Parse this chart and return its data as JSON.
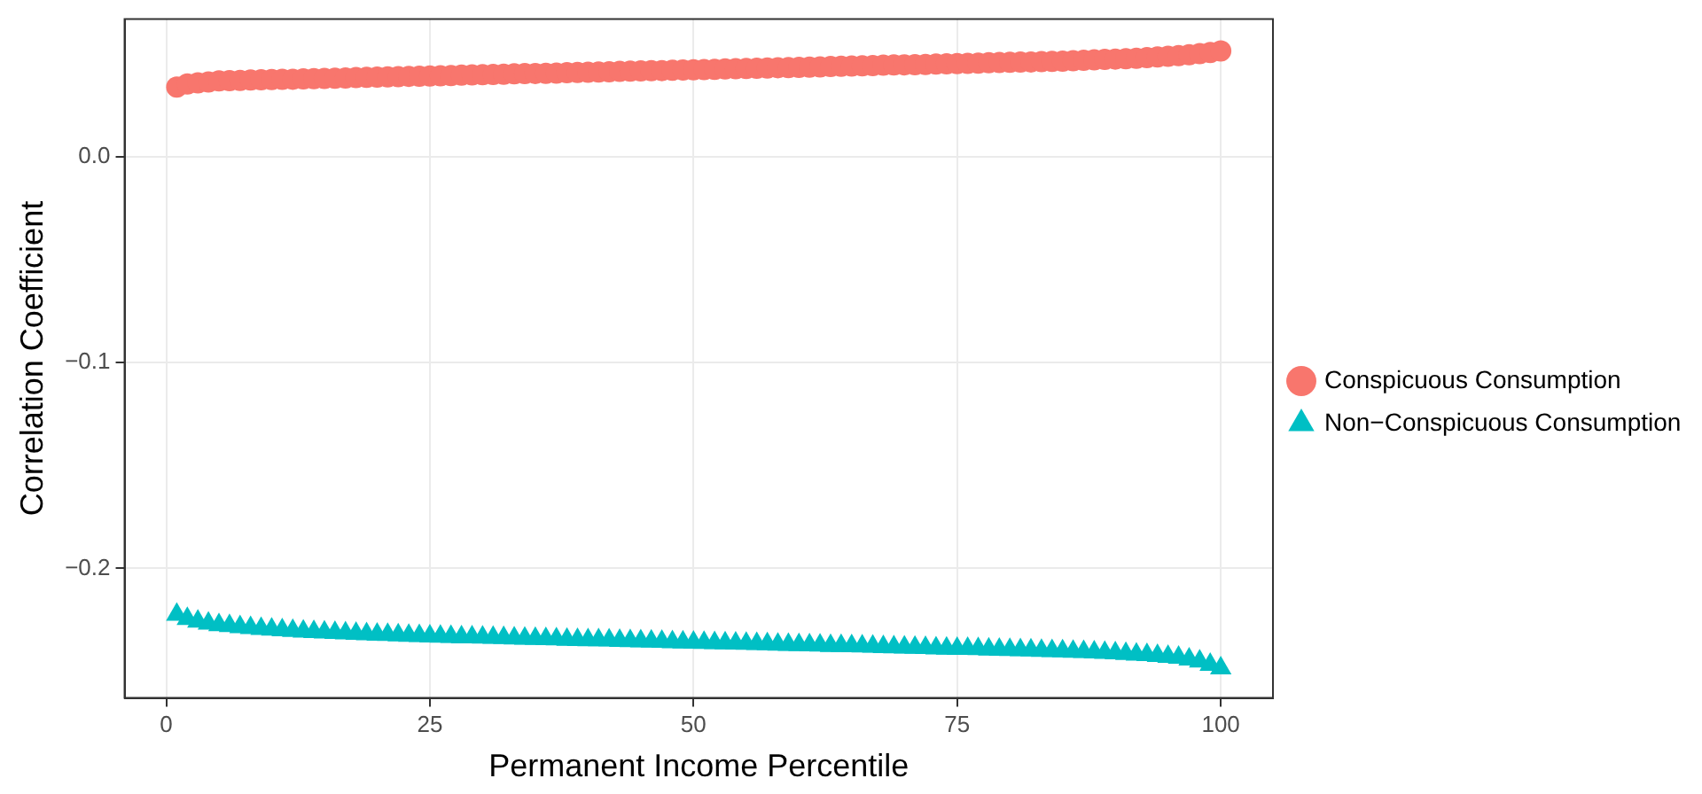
{
  "chart_data": {
    "type": "scatter",
    "xlabel": "Permanent Income Percentile",
    "ylabel": "Correlation Coefficient",
    "x": [
      1,
      2,
      3,
      4,
      5,
      6,
      7,
      8,
      9,
      10,
      11,
      12,
      13,
      14,
      15,
      16,
      17,
      18,
      19,
      20,
      21,
      22,
      23,
      24,
      25,
      26,
      27,
      28,
      29,
      30,
      31,
      32,
      33,
      34,
      35,
      36,
      37,
      38,
      39,
      40,
      41,
      42,
      43,
      44,
      45,
      46,
      47,
      48,
      49,
      50,
      51,
      52,
      53,
      54,
      55,
      56,
      57,
      58,
      59,
      60,
      61,
      62,
      63,
      64,
      65,
      66,
      67,
      68,
      69,
      70,
      71,
      72,
      73,
      74,
      75,
      76,
      77,
      78,
      79,
      80,
      81,
      82,
      83,
      84,
      85,
      86,
      87,
      88,
      89,
      90,
      91,
      92,
      93,
      94,
      95,
      96,
      97,
      98,
      99,
      100
    ],
    "series": [
      {
        "name": "Conspicuous Consumption",
        "color": "#f8766d",
        "marker": "circle",
        "values": [
          0.034,
          0.0355,
          0.036,
          0.0365,
          0.037,
          0.0371,
          0.0372,
          0.0374,
          0.0375,
          0.0376,
          0.0377,
          0.0378,
          0.038,
          0.0381,
          0.0382,
          0.0383,
          0.0384,
          0.0386,
          0.0387,
          0.0388,
          0.0389,
          0.039,
          0.0392,
          0.0393,
          0.0394,
          0.0395,
          0.0396,
          0.0398,
          0.0399,
          0.04,
          0.0401,
          0.0402,
          0.0404,
          0.0405,
          0.0406,
          0.0407,
          0.0408,
          0.041,
          0.0411,
          0.0412,
          0.0413,
          0.0414,
          0.0416,
          0.0417,
          0.0418,
          0.0419,
          0.042,
          0.0422,
          0.0423,
          0.0424,
          0.0425,
          0.0426,
          0.0428,
          0.0429,
          0.043,
          0.0431,
          0.0432,
          0.0434,
          0.0435,
          0.0436,
          0.0437,
          0.0438,
          0.044,
          0.0441,
          0.0442,
          0.0443,
          0.0444,
          0.0446,
          0.0447,
          0.0448,
          0.0449,
          0.045,
          0.0452,
          0.0453,
          0.0454,
          0.0455,
          0.0456,
          0.0458,
          0.0459,
          0.046,
          0.0461,
          0.0462,
          0.0464,
          0.0465,
          0.0466,
          0.0468,
          0.047,
          0.0472,
          0.0474,
          0.0476,
          0.0478,
          0.048,
          0.0483,
          0.0486,
          0.0489,
          0.0493,
          0.0497,
          0.0502,
          0.0508,
          0.0515
        ]
      },
      {
        "name": "Non−Conspicuous Consumption",
        "color": "#00bfc4",
        "marker": "triangle",
        "values": [
          -0.2225,
          -0.2245,
          -0.2258,
          -0.2268,
          -0.2275,
          -0.228,
          -0.2285,
          -0.2289,
          -0.2293,
          -0.2297,
          -0.23,
          -0.2303,
          -0.2306,
          -0.2309,
          -0.2311,
          -0.2313,
          -0.2315,
          -0.2317,
          -0.2319,
          -0.2321,
          -0.2323,
          -0.2325,
          -0.2327,
          -0.2328,
          -0.233,
          -0.2331,
          -0.2332,
          -0.2334,
          -0.2335,
          -0.2336,
          -0.2337,
          -0.2338,
          -0.234,
          -0.2341,
          -0.2342,
          -0.2343,
          -0.2344,
          -0.2346,
          -0.2347,
          -0.2348,
          -0.2349,
          -0.235,
          -0.2352,
          -0.2353,
          -0.2354,
          -0.2355,
          -0.2356,
          -0.2358,
          -0.2359,
          -0.236,
          -0.2361,
          -0.2362,
          -0.2364,
          -0.2365,
          -0.2366,
          -0.2367,
          -0.2368,
          -0.237,
          -0.2371,
          -0.2372,
          -0.2373,
          -0.2374,
          -0.2376,
          -0.2377,
          -0.2378,
          -0.2379,
          -0.238,
          -0.2382,
          -0.2383,
          -0.2384,
          -0.2385,
          -0.2386,
          -0.2388,
          -0.2389,
          -0.239,
          -0.2391,
          -0.2392,
          -0.2394,
          -0.2395,
          -0.2396,
          -0.2397,
          -0.2398,
          -0.24,
          -0.2401,
          -0.2402,
          -0.2404,
          -0.2406,
          -0.2408,
          -0.241,
          -0.2412,
          -0.2415,
          -0.2418,
          -0.2421,
          -0.2425,
          -0.2429,
          -0.2434,
          -0.2442,
          -0.2452,
          -0.2468,
          -0.2485
        ]
      }
    ],
    "xlim": [
      -3.95,
      104.95
    ],
    "xticks": [
      0,
      25,
      50,
      75,
      100
    ],
    "ylim": [
      -0.263,
      0.067
    ],
    "yticks": [
      {
        "value": -0.2,
        "label": "−0.2"
      },
      {
        "value": -0.1,
        "label": "−0.1"
      },
      {
        "value": 0,
        "label": "0.0"
      }
    ],
    "grid": true,
    "legend": "right"
  }
}
